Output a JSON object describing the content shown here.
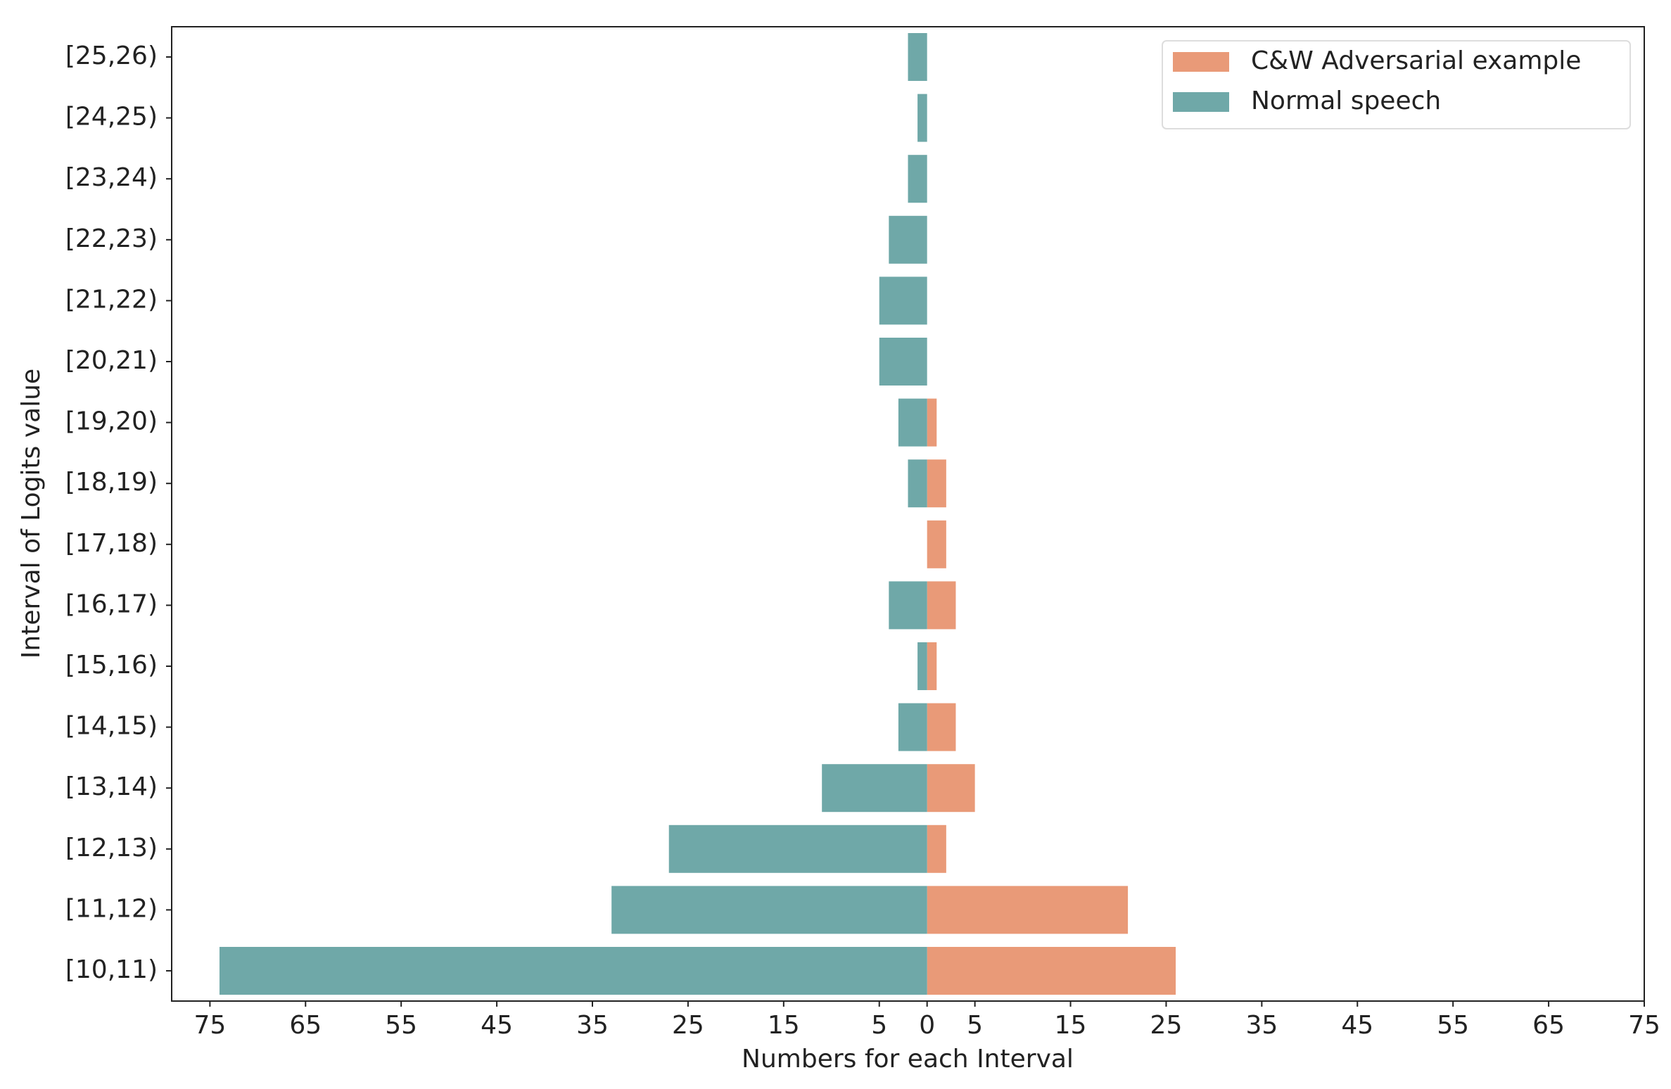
{
  "chart_data": {
    "type": "diverging-bar",
    "xlabel": "Numbers for each Interval",
    "ylabel": "Interval of Logits value",
    "categories": [
      "[10,11)",
      "[11,12)",
      "[12,13)",
      "[13,14)",
      "[14,15)",
      "[15,16)",
      "[16,17)",
      "[17,18)",
      "[18,19)",
      "[19,20)",
      "[20,21)",
      "[21,22)",
      "[22,23)",
      "[23,24)",
      "[24,25)",
      "[25,26)"
    ],
    "series": [
      {
        "name": "C&W Adversarial example",
        "color": "#e99a78",
        "values": [
          26,
          21,
          2,
          5,
          3,
          1,
          3,
          2,
          2,
          1,
          0,
          0,
          0,
          0,
          0,
          0
        ]
      },
      {
        "name": "Normal speech",
        "color": "#6fa8a8",
        "values": [
          -74,
          -33,
          -27,
          -11,
          -3,
          -1,
          -4,
          0,
          -2,
          -3,
          -5,
          -5,
          -4,
          -2,
          -1,
          -2
        ]
      }
    ],
    "xlim": [
      -79,
      75
    ],
    "xticks": [
      {
        "value": -75,
        "label": "75"
      },
      {
        "value": -65,
        "label": "65"
      },
      {
        "value": -55,
        "label": "55"
      },
      {
        "value": -45,
        "label": "45"
      },
      {
        "value": -35,
        "label": "35"
      },
      {
        "value": -25,
        "label": "25"
      },
      {
        "value": -15,
        "label": "15"
      },
      {
        "value": -5,
        "label": "5"
      },
      0,
      5,
      15,
      25,
      35,
      45,
      55,
      65,
      75
    ],
    "legend": "upper right"
  }
}
